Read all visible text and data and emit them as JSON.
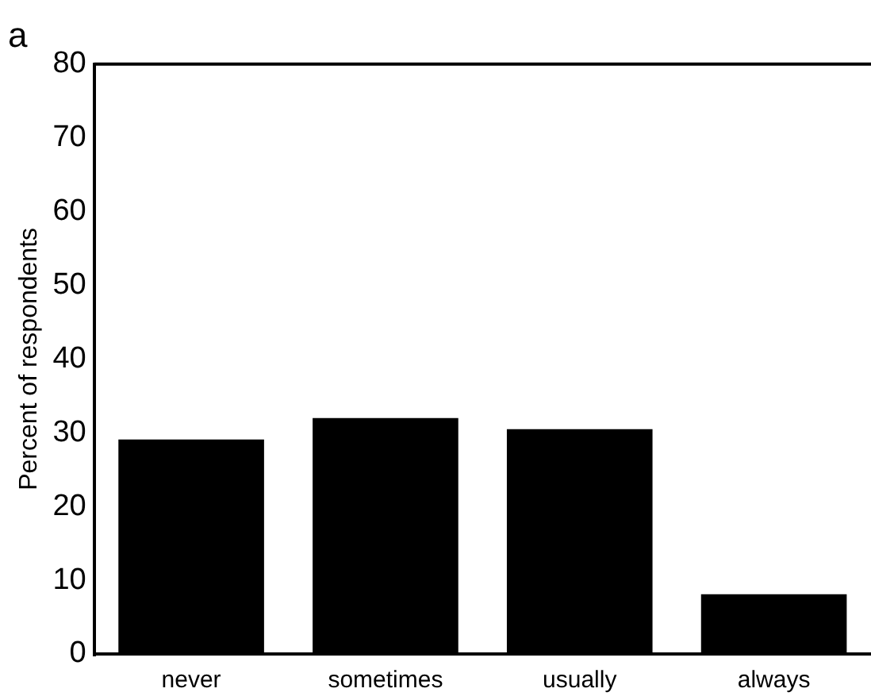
{
  "chart_data": {
    "type": "bar",
    "title": "a",
    "ylabel": "Percent of respondents",
    "categories": [
      "never",
      "sometimes",
      "usually",
      "always"
    ],
    "values": [
      29.1,
      32,
      30.5,
      8.1
    ],
    "color": "#000000",
    "ylim": [
      0,
      80
    ],
    "yticks": [
      0,
      10,
      20,
      30,
      40,
      50,
      60,
      70,
      80
    ],
    "grid": false,
    "legend": false
  }
}
